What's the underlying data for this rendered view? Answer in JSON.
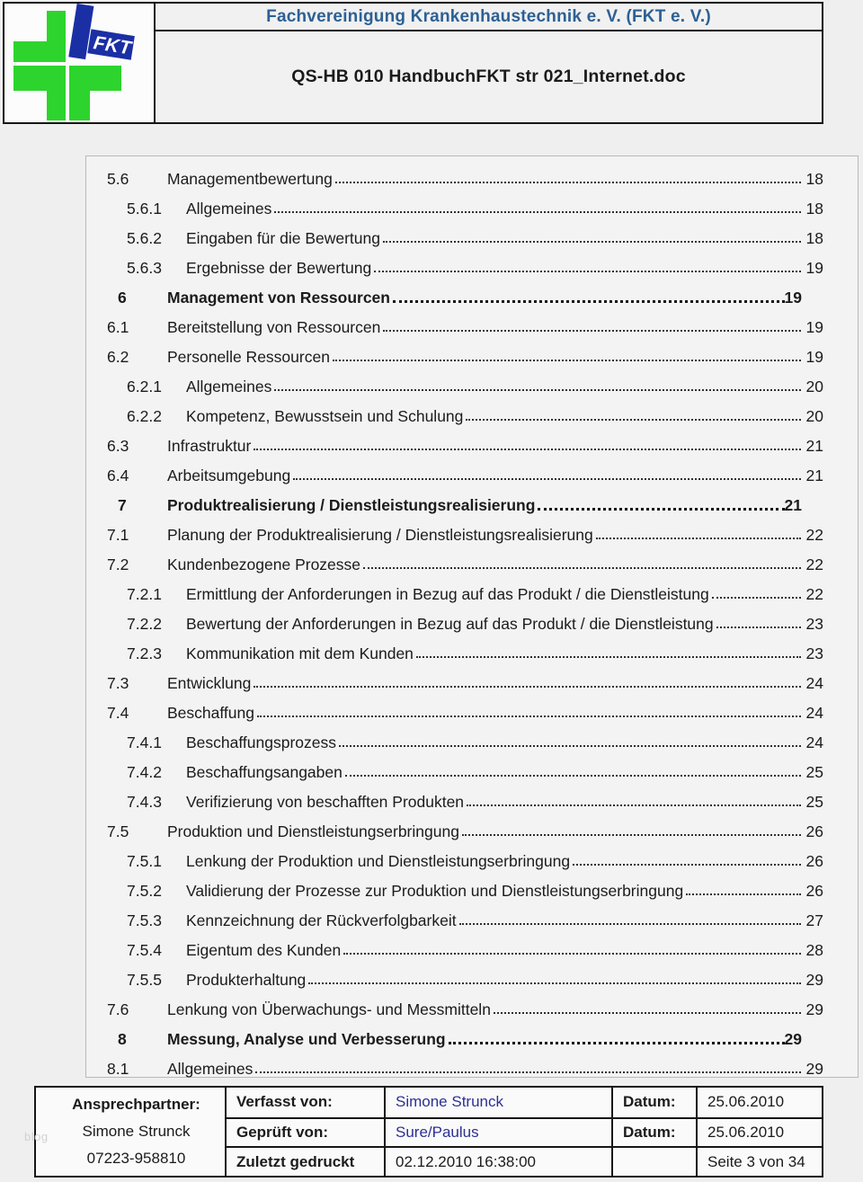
{
  "header": {
    "org_title": "Fachvereinigung Krankenhaustechnik e. V. (FKT e. V.)",
    "doc_title": "QS-HB 010 HandbuchFKT str 021_Internet.doc",
    "logo_text": "FKT"
  },
  "colors": {
    "header_blue": "#2d6094",
    "footer_name_blue": "#2b3193",
    "logo_green": "#2dd42d",
    "logo_blue": "#1b2fa5"
  },
  "toc": {
    "entries": [
      {
        "num": "5.6",
        "title": "Managementbewertung",
        "page": "18",
        "level": 1,
        "bold": false
      },
      {
        "num": "5.6.1",
        "title": "Allgemeines",
        "page": "18",
        "level": 2,
        "bold": false
      },
      {
        "num": "5.6.2",
        "title": "Eingaben für die Bewertung",
        "page": "18",
        "level": 2,
        "bold": false
      },
      {
        "num": "5.6.3",
        "title": "Ergebnisse der Bewertung",
        "page": "19",
        "level": 2,
        "bold": false
      },
      {
        "num": "6",
        "title": "Management von Ressourcen",
        "page": "19",
        "level": 0,
        "bold": true
      },
      {
        "num": "6.1",
        "title": "Bereitstellung von Ressourcen",
        "page": "19",
        "level": 1,
        "bold": false
      },
      {
        "num": "6.2",
        "title": "Personelle Ressourcen",
        "page": "19",
        "level": 1,
        "bold": false
      },
      {
        "num": "6.2.1",
        "title": "Allgemeines",
        "page": "20",
        "level": 2,
        "bold": false
      },
      {
        "num": "6.2.2",
        "title": "Kompetenz, Bewusstsein und Schulung",
        "page": "20",
        "level": 2,
        "bold": false
      },
      {
        "num": "6.3",
        "title": "Infrastruktur",
        "page": "21",
        "level": 1,
        "bold": false
      },
      {
        "num": "6.4",
        "title": "Arbeitsumgebung",
        "page": "21",
        "level": 1,
        "bold": false
      },
      {
        "num": "7",
        "title": "Produktrealisierung / Dienstleistungsrealisierung",
        "page": "21",
        "level": 0,
        "bold": true
      },
      {
        "num": "7.1",
        "title": "Planung der Produktrealisierung / Dienstleistungsrealisierung",
        "page": "22",
        "level": 1,
        "bold": false
      },
      {
        "num": "7.2",
        "title": "Kundenbezogene Prozesse",
        "page": "22",
        "level": 1,
        "bold": false
      },
      {
        "num": "7.2.1",
        "title": "Ermittlung der Anforderungen in Bezug auf das Produkt / die Dienstleistung",
        "page": "22",
        "level": 2,
        "bold": false
      },
      {
        "num": "7.2.2",
        "title": "Bewertung der Anforderungen in Bezug auf das Produkt / die Dienstleistung",
        "page": "23",
        "level": 2,
        "bold": false
      },
      {
        "num": "7.2.3",
        "title": "Kommunikation mit dem Kunden",
        "page": "23",
        "level": 2,
        "bold": false
      },
      {
        "num": "7.3",
        "title": "Entwicklung",
        "page": "24",
        "level": 1,
        "bold": false
      },
      {
        "num": "7.4",
        "title": "Beschaffung",
        "page": "24",
        "level": 1,
        "bold": false
      },
      {
        "num": "7.4.1",
        "title": "Beschaffungsprozess",
        "page": "24",
        "level": 2,
        "bold": false
      },
      {
        "num": "7.4.2",
        "title": "Beschaffungsangaben",
        "page": "25",
        "level": 2,
        "bold": false
      },
      {
        "num": "7.4.3",
        "title": "Verifizierung von beschafften Produkten",
        "page": "25",
        "level": 2,
        "bold": false
      },
      {
        "num": "7.5",
        "title": "Produktion und Dienstleistungserbringung",
        "page": "26",
        "level": 1,
        "bold": false
      },
      {
        "num": "7.5.1",
        "title": "Lenkung der Produktion und Dienstleistungserbringung",
        "page": "26",
        "level": 2,
        "bold": false
      },
      {
        "num": "7.5.2",
        "title": "Validierung der Prozesse zur Produktion und Dienstleistungserbringung",
        "page": "26",
        "level": 2,
        "bold": false
      },
      {
        "num": "7.5.3",
        "title": "Kennzeichnung der Rückverfolgbarkeit",
        "page": "27",
        "level": 2,
        "bold": false
      },
      {
        "num": "7.5.4",
        "title": "Eigentum des Kunden",
        "page": "28",
        "level": 2,
        "bold": false
      },
      {
        "num": "7.5.5",
        "title": "Produkterhaltung",
        "page": "29",
        "level": 2,
        "bold": false
      },
      {
        "num": "7.6",
        "title": "Lenkung von Überwachungs- und Messmitteln",
        "page": "29",
        "level": 1,
        "bold": false
      },
      {
        "num": "8",
        "title": "Messung, Analyse und Verbesserung",
        "page": "29",
        "level": 0,
        "bold": true
      },
      {
        "num": "8.1",
        "title": "Allgemeines",
        "page": "29",
        "level": 1,
        "bold": false
      }
    ]
  },
  "footer": {
    "contact_label": "Ansprechpartner:",
    "contact_name": "Simone Strunck",
    "contact_phone": "07223-958810",
    "rows": [
      {
        "label": "Verfasst von:",
        "value": "Simone Strunck",
        "date_label": "Datum:",
        "date": "25.06.2010"
      },
      {
        "label": "Geprüft von:",
        "value": "Sure/Paulus",
        "date_label": "Datum:",
        "date": "25.06.2010"
      },
      {
        "label": "Zuletzt gedruckt",
        "value": "02.12.2010 16:38:00",
        "date_label": "",
        "date": "Seite 3 von 34"
      }
    ]
  },
  "watermark": "blog"
}
